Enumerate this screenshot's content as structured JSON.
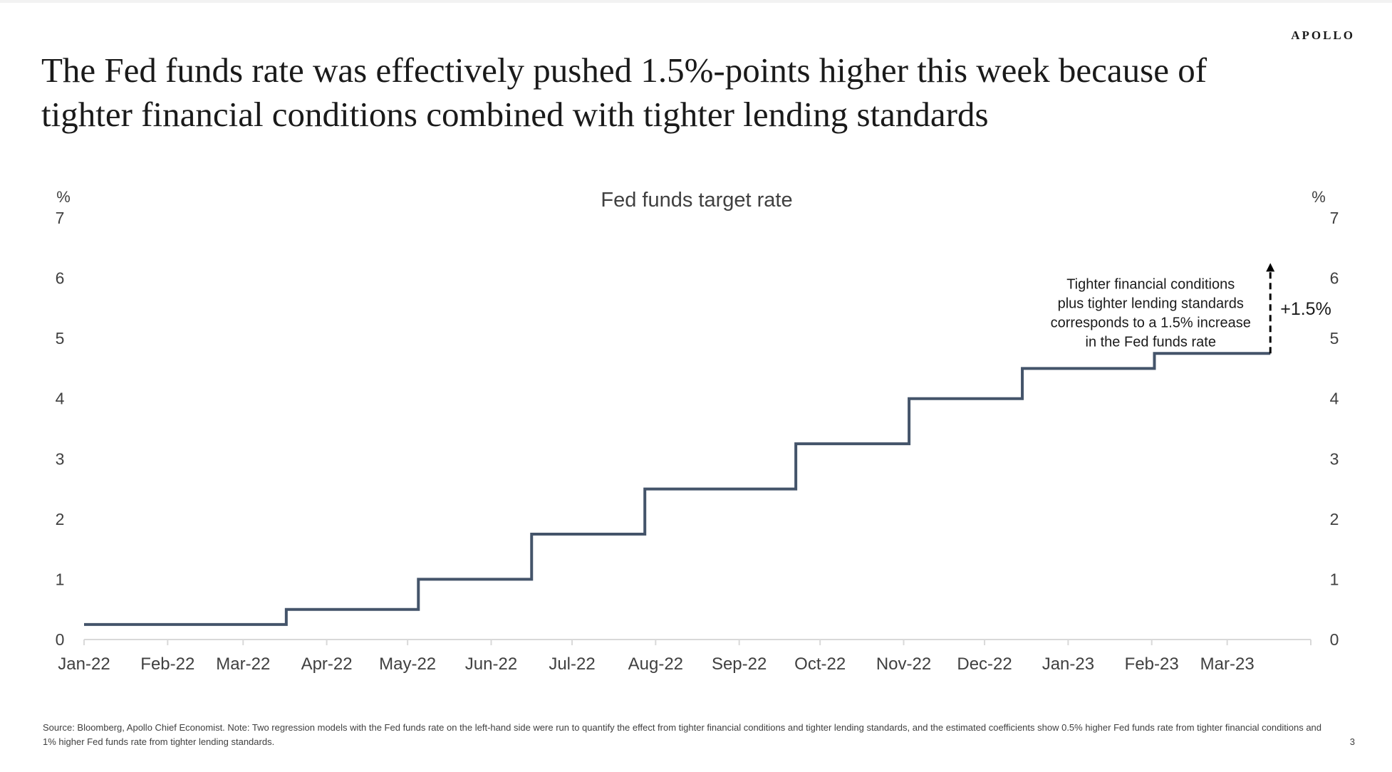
{
  "header": {
    "brand": "APOLLO",
    "title": "The Fed funds rate was effectively pushed 1.5%-points higher this week because of tighter financial conditions combined with tighter lending standards"
  },
  "colors": {
    "line": "#44546a",
    "axis": "#d9d9d9",
    "text": "#404040",
    "annotation_text": "#1a1a1a"
  },
  "chart_data": {
    "type": "line",
    "step": true,
    "title": "Fed funds target rate",
    "ylabel_left": "%",
    "ylabel_right": "%",
    "ylim": [
      0,
      7
    ],
    "y_ticks": [
      0,
      1,
      2,
      3,
      4,
      5,
      6,
      7
    ],
    "x_tick_labels": [
      "Jan-22",
      "Feb-22",
      "Mar-22",
      "Apr-22",
      "May-22",
      "Jun-22",
      "Jul-22",
      "Aug-22",
      "Sep-22",
      "Oct-22",
      "Nov-22",
      "Dec-22",
      "Jan-23",
      "Feb-23",
      "Mar-23"
    ],
    "x_ticks": [
      "2022-01-01",
      "2022-02-01",
      "2022-03-01",
      "2022-04-01",
      "2022-05-01",
      "2022-06-01",
      "2022-07-01",
      "2022-08-01",
      "2022-09-01",
      "2022-10-01",
      "2022-11-01",
      "2022-12-01",
      "2023-01-01",
      "2023-02-01",
      "2023-03-01"
    ],
    "xlim": [
      "2022-01-01",
      "2023-04-01"
    ],
    "grid": false,
    "series": [
      {
        "points": [
          [
            "2022-01-01",
            0.25
          ],
          [
            "2022-03-17",
            0.5
          ],
          [
            "2022-05-05",
            1.0
          ],
          [
            "2022-06-16",
            1.75
          ],
          [
            "2022-07-28",
            2.5
          ],
          [
            "2022-09-22",
            3.25
          ],
          [
            "2022-11-03",
            4.0
          ],
          [
            "2022-12-15",
            4.5
          ],
          [
            "2023-02-02",
            4.75
          ],
          [
            "2023-03-17",
            4.75
          ]
        ]
      }
    ],
    "annotations": [
      {
        "text_lines": [
          "Tighter financial conditions",
          "plus tighter lending standards",
          "corresponds to a 1.5% increase",
          "in the Fed funds rate"
        ],
        "label": "+1.5%",
        "x": "2023-03-17",
        "y_from": 4.75,
        "y_to": 6.25
      }
    ]
  },
  "footer": {
    "source": "Source: Bloomberg, Apollo Chief Economist. Note: Two regression models with the Fed funds rate on the left-hand side were run to quantify the effect from tighter financial conditions and tighter lending standards, and the estimated coefficients show 0.5% higher Fed funds rate from tighter financial conditions and 1% higher Fed funds rate from tighter lending standards.",
    "page": "3"
  }
}
